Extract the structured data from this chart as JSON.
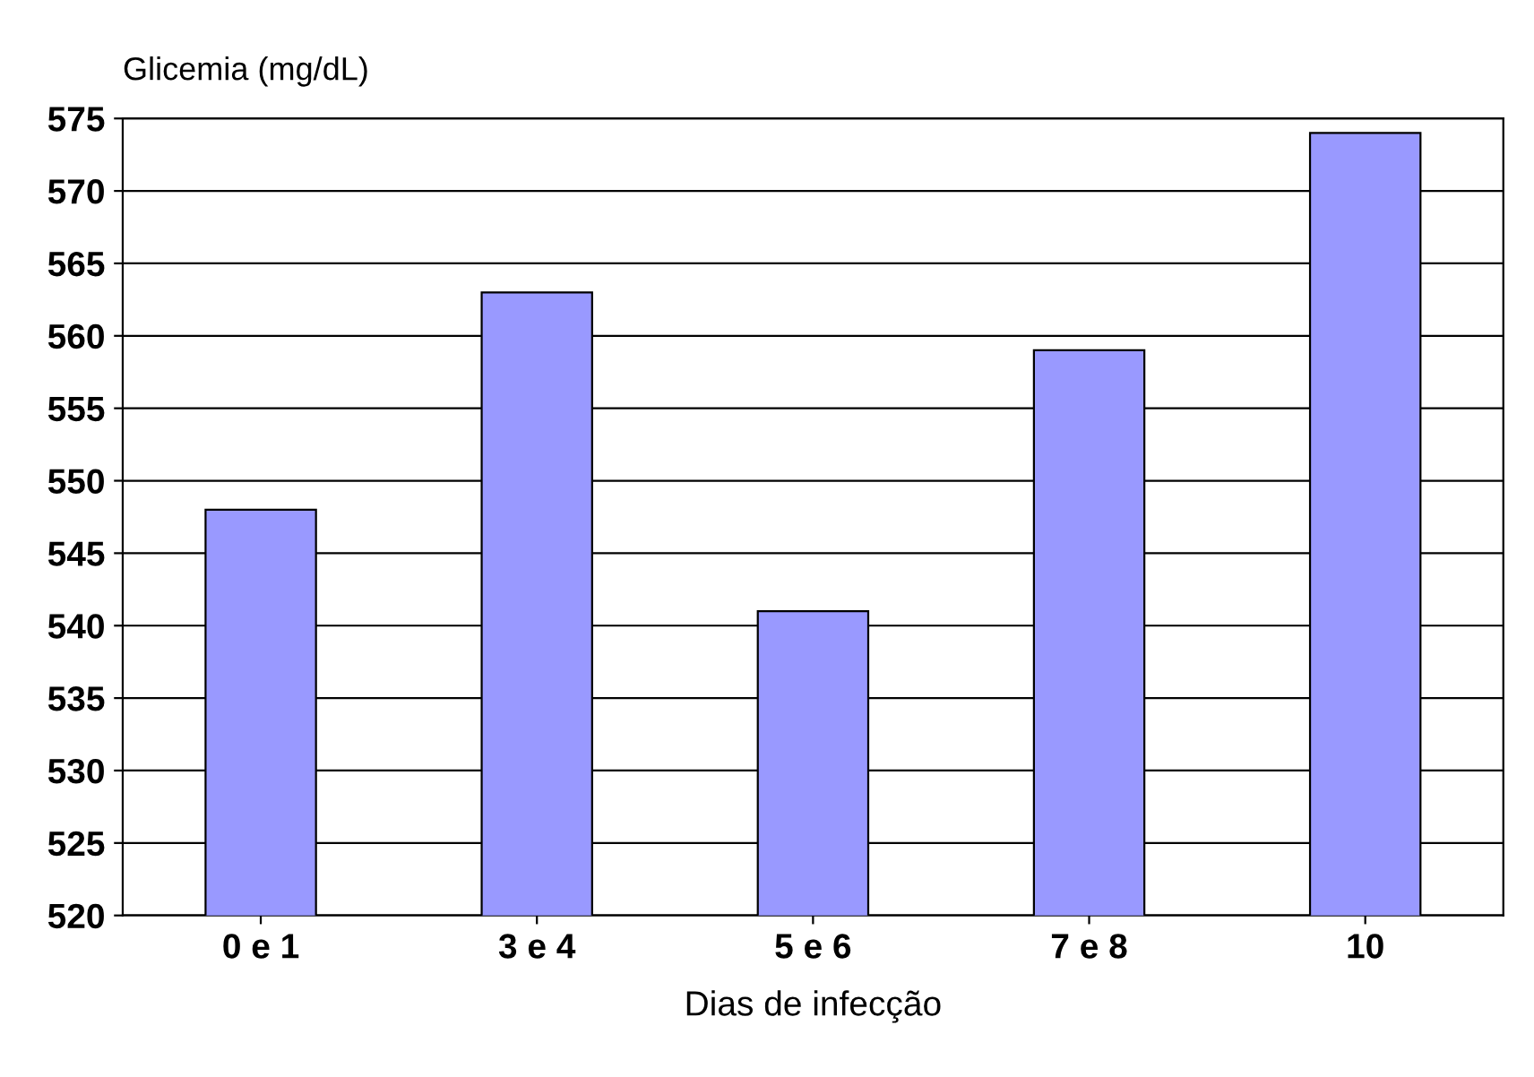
{
  "chart_data": {
    "type": "bar",
    "ylabel": "Glicemia (mg/dL)",
    "xlabel": "Dias de infecção",
    "categories": [
      "0 e 1",
      "3 e 4",
      "5 e 6",
      "7 e 8",
      "10"
    ],
    "values": [
      548,
      563,
      541,
      559,
      574
    ],
    "color": "#9999ff",
    "ylim": [
      520,
      575
    ],
    "yticks": [
      520,
      525,
      530,
      535,
      540,
      545,
      550,
      555,
      560,
      565,
      570,
      575
    ],
    "grid": "y"
  }
}
